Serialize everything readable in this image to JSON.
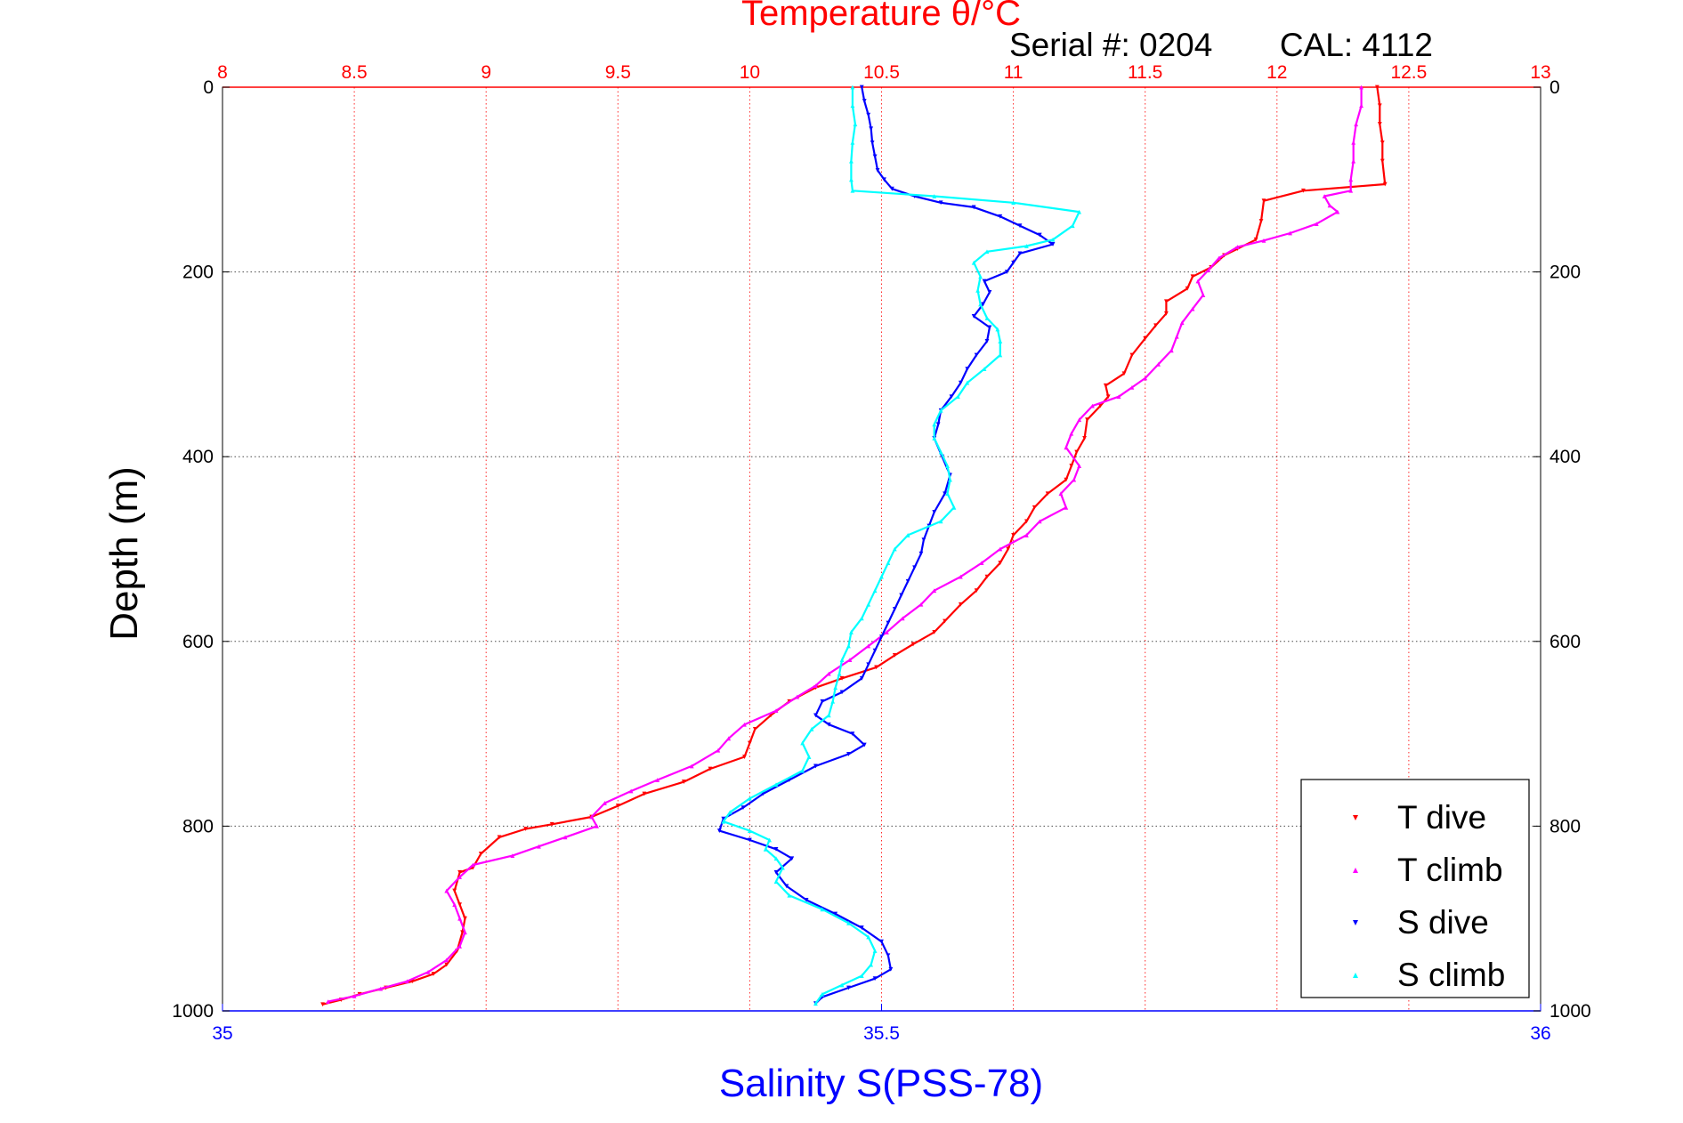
{
  "chart_data": {
    "type": "scatter",
    "title": "Temperature θ/°C",
    "subtitle_serial": "Serial #: 0204",
    "subtitle_cal": "CAL: 4112",
    "xlabel": "Salinity S(PSS-78)",
    "ylabel": "Depth (m)",
    "y_reversed": true,
    "ylim": [
      0,
      1000
    ],
    "y_ticks": [
      0,
      200,
      400,
      600,
      800,
      1000
    ],
    "y_tick_labels": [
      "0",
      "200",
      "400",
      "600",
      "800",
      "1000"
    ],
    "temperature_axis": {
      "position": "top",
      "color": "#ff0000",
      "lim": [
        8,
        13
      ],
      "ticks": [
        8,
        8.5,
        9,
        9.5,
        10,
        10.5,
        11,
        11.5,
        12,
        12.5,
        13
      ],
      "tick_labels": [
        "8",
        "8.5",
        "9",
        "9.5",
        "10",
        "10.5",
        "11",
        "11.5",
        "12",
        "12.5",
        "13"
      ],
      "grid": true
    },
    "salinity_axis": {
      "position": "bottom",
      "color": "#0000ff",
      "lim": [
        35,
        36
      ],
      "ticks": [
        35,
        35.5,
        36
      ],
      "tick_labels": [
        "35",
        "35.5",
        "36"
      ]
    },
    "grid": true,
    "legend_placement": "bottom-right",
    "legend": [
      "T dive",
      "T climb",
      "S dive",
      "S climb"
    ],
    "series": [
      {
        "name": "T dive",
        "axis": "temperature",
        "color": "#ff0000",
        "points": [
          [
            12.38,
            0
          ],
          [
            12.39,
            20
          ],
          [
            12.39,
            40
          ],
          [
            12.4,
            60
          ],
          [
            12.4,
            80
          ],
          [
            12.41,
            105
          ],
          [
            12.1,
            112
          ],
          [
            11.95,
            123
          ],
          [
            11.94,
            145
          ],
          [
            11.92,
            165
          ],
          [
            11.85,
            175
          ],
          [
            11.8,
            182
          ],
          [
            11.75,
            195
          ],
          [
            11.68,
            205
          ],
          [
            11.66,
            218
          ],
          [
            11.58,
            232
          ],
          [
            11.58,
            245
          ],
          [
            11.54,
            258
          ],
          [
            11.5,
            272
          ],
          [
            11.45,
            290
          ],
          [
            11.42,
            310
          ],
          [
            11.35,
            323
          ],
          [
            11.36,
            335
          ],
          [
            11.33,
            345
          ],
          [
            11.28,
            360
          ],
          [
            11.27,
            380
          ],
          [
            11.24,
            395
          ],
          [
            11.22,
            410
          ],
          [
            11.2,
            425
          ],
          [
            11.13,
            440
          ],
          [
            11.08,
            455
          ],
          [
            11.05,
            470
          ],
          [
            11.0,
            485
          ],
          [
            10.98,
            500
          ],
          [
            10.95,
            515
          ],
          [
            10.9,
            530
          ],
          [
            10.86,
            545
          ],
          [
            10.8,
            560
          ],
          [
            10.74,
            578
          ],
          [
            10.7,
            590
          ],
          [
            10.62,
            603
          ],
          [
            10.55,
            615
          ],
          [
            10.48,
            628
          ],
          [
            10.35,
            640
          ],
          [
            10.25,
            650
          ],
          [
            10.15,
            665
          ],
          [
            10.08,
            680
          ],
          [
            10.02,
            695
          ],
          [
            10.0,
            710
          ],
          [
            9.98,
            725
          ],
          [
            9.85,
            738
          ],
          [
            9.75,
            752
          ],
          [
            9.6,
            765
          ],
          [
            9.5,
            778
          ],
          [
            9.4,
            790
          ],
          [
            9.25,
            798
          ],
          [
            9.15,
            803
          ],
          [
            9.05,
            812
          ],
          [
            8.98,
            830
          ],
          [
            8.95,
            845
          ],
          [
            8.9,
            850
          ],
          [
            8.88,
            870
          ],
          [
            8.9,
            885
          ],
          [
            8.92,
            900
          ],
          [
            8.91,
            915
          ],
          [
            8.89,
            935
          ],
          [
            8.85,
            950
          ],
          [
            8.8,
            960
          ],
          [
            8.72,
            968
          ],
          [
            8.62,
            975
          ],
          [
            8.52,
            982
          ],
          [
            8.45,
            988
          ],
          [
            8.38,
            993
          ]
        ]
      },
      {
        "name": "T climb",
        "axis": "temperature",
        "color": "#ff00ff",
        "points": [
          [
            12.32,
            0
          ],
          [
            12.32,
            20
          ],
          [
            12.3,
            40
          ],
          [
            12.29,
            60
          ],
          [
            12.29,
            80
          ],
          [
            12.28,
            100
          ],
          [
            12.28,
            112
          ],
          [
            12.18,
            118
          ],
          [
            12.2,
            128
          ],
          [
            12.23,
            135
          ],
          [
            12.15,
            148
          ],
          [
            12.05,
            158
          ],
          [
            11.95,
            166
          ],
          [
            11.85,
            173
          ],
          [
            11.78,
            185
          ],
          [
            11.74,
            198
          ],
          [
            11.7,
            210
          ],
          [
            11.72,
            225
          ],
          [
            11.68,
            240
          ],
          [
            11.64,
            255
          ],
          [
            11.62,
            270
          ],
          [
            11.6,
            285
          ],
          [
            11.55,
            300
          ],
          [
            11.5,
            315
          ],
          [
            11.45,
            325
          ],
          [
            11.4,
            335
          ],
          [
            11.3,
            345
          ],
          [
            11.25,
            360
          ],
          [
            11.22,
            375
          ],
          [
            11.2,
            390
          ],
          [
            11.25,
            410
          ],
          [
            11.23,
            425
          ],
          [
            11.18,
            440
          ],
          [
            11.2,
            455
          ],
          [
            11.1,
            470
          ],
          [
            11.05,
            485
          ],
          [
            10.95,
            500
          ],
          [
            10.88,
            515
          ],
          [
            10.8,
            530
          ],
          [
            10.7,
            545
          ],
          [
            10.65,
            560
          ],
          [
            10.58,
            575
          ],
          [
            10.52,
            590
          ],
          [
            10.45,
            605
          ],
          [
            10.38,
            620
          ],
          [
            10.3,
            635
          ],
          [
            10.25,
            648
          ],
          [
            10.18,
            660
          ],
          [
            10.1,
            675
          ],
          [
            9.98,
            690
          ],
          [
            9.92,
            705
          ],
          [
            9.88,
            718
          ],
          [
            9.78,
            735
          ],
          [
            9.65,
            750
          ],
          [
            9.55,
            762
          ],
          [
            9.45,
            775
          ],
          [
            9.4,
            790
          ],
          [
            9.42,
            800
          ],
          [
            9.3,
            812
          ],
          [
            9.2,
            822
          ],
          [
            9.1,
            832
          ],
          [
            8.95,
            842
          ],
          [
            8.9,
            855
          ],
          [
            8.85,
            870
          ],
          [
            8.88,
            885
          ],
          [
            8.9,
            900
          ],
          [
            8.92,
            915
          ],
          [
            8.9,
            930
          ],
          [
            8.85,
            945
          ],
          [
            8.78,
            958
          ],
          [
            8.7,
            968
          ],
          [
            8.6,
            976
          ],
          [
            8.5,
            984
          ],
          [
            8.4,
            990
          ]
        ]
      },
      {
        "name": "S dive",
        "axis": "salinity",
        "color": "#0000ff",
        "points": [
          [
            35.485,
            0
          ],
          [
            35.487,
            15
          ],
          [
            35.49,
            30
          ],
          [
            35.492,
            45
          ],
          [
            35.493,
            60
          ],
          [
            35.495,
            75
          ],
          [
            35.497,
            90
          ],
          [
            35.502,
            100
          ],
          [
            35.508,
            110
          ],
          [
            35.525,
            118
          ],
          [
            35.545,
            125
          ],
          [
            35.57,
            130
          ],
          [
            35.59,
            140
          ],
          [
            35.605,
            150
          ],
          [
            35.62,
            160
          ],
          [
            35.63,
            170
          ],
          [
            35.605,
            180
          ],
          [
            35.6,
            190
          ],
          [
            35.595,
            200
          ],
          [
            35.578,
            210
          ],
          [
            35.582,
            222
          ],
          [
            35.577,
            235
          ],
          [
            35.57,
            248
          ],
          [
            35.582,
            260
          ],
          [
            35.58,
            275
          ],
          [
            35.572,
            290
          ],
          [
            35.565,
            305
          ],
          [
            35.56,
            320
          ],
          [
            35.553,
            335
          ],
          [
            35.545,
            350
          ],
          [
            35.543,
            365
          ],
          [
            35.54,
            380
          ],
          [
            35.546,
            400
          ],
          [
            35.552,
            420
          ],
          [
            35.548,
            440
          ],
          [
            35.54,
            460
          ],
          [
            35.536,
            475
          ],
          [
            35.532,
            490
          ],
          [
            35.53,
            505
          ],
          [
            35.525,
            520
          ],
          [
            35.52,
            535
          ],
          [
            35.515,
            550
          ],
          [
            35.51,
            565
          ],
          [
            35.505,
            580
          ],
          [
            35.5,
            595
          ],
          [
            35.495,
            610
          ],
          [
            35.49,
            625
          ],
          [
            35.485,
            640
          ],
          [
            35.47,
            655
          ],
          [
            35.455,
            665
          ],
          [
            35.45,
            680
          ],
          [
            35.46,
            690
          ],
          [
            35.478,
            700
          ],
          [
            35.487,
            712
          ],
          [
            35.475,
            722
          ],
          [
            35.45,
            735
          ],
          [
            35.43,
            750
          ],
          [
            35.41,
            765
          ],
          [
            35.395,
            780
          ],
          [
            35.38,
            792
          ],
          [
            35.377,
            805
          ],
          [
            35.4,
            815
          ],
          [
            35.42,
            825
          ],
          [
            35.432,
            835
          ],
          [
            35.42,
            850
          ],
          [
            35.428,
            865
          ],
          [
            35.443,
            880
          ],
          [
            35.465,
            895
          ],
          [
            35.485,
            910
          ],
          [
            35.5,
            925
          ],
          [
            35.505,
            940
          ],
          [
            35.507,
            955
          ],
          [
            35.495,
            965
          ],
          [
            35.475,
            975
          ],
          [
            35.455,
            985
          ],
          [
            35.45,
            992
          ]
        ]
      },
      {
        "name": "S climb",
        "axis": "salinity",
        "color": "#00ffff",
        "points": [
          [
            35.478,
            0
          ],
          [
            35.478,
            20
          ],
          [
            35.48,
            40
          ],
          [
            35.478,
            60
          ],
          [
            35.477,
            80
          ],
          [
            35.477,
            100
          ],
          [
            35.478,
            112
          ],
          [
            35.54,
            118
          ],
          [
            35.6,
            125
          ],
          [
            35.65,
            135
          ],
          [
            35.645,
            150
          ],
          [
            35.63,
            165
          ],
          [
            35.61,
            172
          ],
          [
            35.58,
            178
          ],
          [
            35.57,
            190
          ],
          [
            35.575,
            205
          ],
          [
            35.573,
            220
          ],
          [
            35.575,
            235
          ],
          [
            35.58,
            250
          ],
          [
            35.588,
            262
          ],
          [
            35.59,
            275
          ],
          [
            35.59,
            290
          ],
          [
            35.578,
            305
          ],
          [
            35.565,
            320
          ],
          [
            35.558,
            335
          ],
          [
            35.545,
            350
          ],
          [
            35.54,
            365
          ],
          [
            35.54,
            380
          ],
          [
            35.545,
            395
          ],
          [
            35.55,
            410
          ],
          [
            35.552,
            425
          ],
          [
            35.55,
            440
          ],
          [
            35.555,
            455
          ],
          [
            35.545,
            470
          ],
          [
            35.52,
            485
          ],
          [
            35.51,
            500
          ],
          [
            35.505,
            515
          ],
          [
            35.5,
            530
          ],
          [
            35.495,
            545
          ],
          [
            35.49,
            560
          ],
          [
            35.485,
            575
          ],
          [
            35.477,
            590
          ],
          [
            35.475,
            605
          ],
          [
            35.47,
            620
          ],
          [
            35.468,
            635
          ],
          [
            35.465,
            650
          ],
          [
            35.463,
            665
          ],
          [
            35.46,
            680
          ],
          [
            35.447,
            695
          ],
          [
            35.44,
            710
          ],
          [
            35.445,
            725
          ],
          [
            35.44,
            740
          ],
          [
            35.42,
            755
          ],
          [
            35.4,
            770
          ],
          [
            35.385,
            785
          ],
          [
            35.38,
            795
          ],
          [
            35.4,
            805
          ],
          [
            35.415,
            815
          ],
          [
            35.412,
            825
          ],
          [
            35.42,
            835
          ],
          [
            35.425,
            845
          ],
          [
            35.42,
            860
          ],
          [
            35.43,
            875
          ],
          [
            35.455,
            890
          ],
          [
            35.475,
            905
          ],
          [
            35.49,
            920
          ],
          [
            35.495,
            935
          ],
          [
            35.492,
            950
          ],
          [
            35.485,
            962
          ],
          [
            35.47,
            972
          ],
          [
            35.455,
            982
          ],
          [
            35.45,
            992
          ]
        ]
      }
    ]
  }
}
